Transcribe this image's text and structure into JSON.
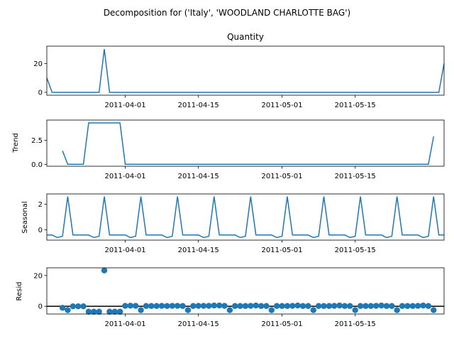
{
  "figure": {
    "title": "Decomposition for ('Italy', 'WOODLAND CHARLOTTE BAG')",
    "x_tick_labels": [
      "2011-04-01",
      "2011-04-15",
      "2011-05-01",
      "2011-05-15"
    ]
  },
  "chart_data": [
    {
      "type": "line",
      "title": "Quantity",
      "ylabel": "",
      "ylim": [
        -2,
        32
      ],
      "yticks": [
        0,
        20
      ],
      "x_start": "2011-03-17",
      "x_end": "2011-06-01",
      "x": [
        "2011-03-17",
        "2011-03-18",
        "2011-03-27",
        "2011-03-28",
        "2011-03-29",
        "2011-06-01"
      ],
      "values": [
        10,
        0,
        0,
        30,
        0,
        20
      ],
      "note_fill": "value is 0 on all other days between these dates",
      "color": "#1f77b4"
    },
    {
      "type": "line",
      "title": "",
      "ylabel": "Trend",
      "ylim": [
        -0.2,
        4.6
      ],
      "yticks": [
        0.0,
        2.5
      ],
      "x": [
        "2011-03-20",
        "2011-03-21",
        "2011-03-24",
        "2011-03-25",
        "2011-03-31",
        "2011-04-01",
        "2011-05-29",
        "2011-05-30"
      ],
      "values": [
        1.4,
        0,
        0,
        4.3,
        4.3,
        0,
        0,
        2.9
      ],
      "color": "#1f77b4"
    },
    {
      "type": "line",
      "title": "",
      "ylabel": "Seasonal",
      "ylim": [
        -0.8,
        2.8
      ],
      "yticks": [
        0,
        2
      ],
      "pattern_start": "2011-03-17",
      "weekly_pattern": [
        -0.4,
        -0.4,
        -0.6,
        -0.5,
        2.6,
        -0.4,
        -0.4
      ],
      "x_end": "2011-06-01",
      "color": "#1f77b4"
    },
    {
      "type": "scatter",
      "title": "",
      "ylabel": "Resid",
      "ylim": [
        -5,
        25
      ],
      "yticks": [
        0,
        20
      ],
      "zero_line": true,
      "x_start": "2011-03-20",
      "values": [
        -1,
        -2.5,
        0,
        0,
        0,
        -3.5,
        -3.5,
        -3.5,
        23.3,
        -3.5,
        -3.5,
        -3.5,
        0.3,
        0.4,
        0.3,
        -2.5,
        0.2,
        0.2,
        0.2,
        0.3,
        0.2,
        0.3,
        0.3,
        0.2,
        -2.5,
        0.2,
        0.3,
        0.3,
        0.3,
        0.5,
        0.5,
        0.3,
        -2.5,
        0.2,
        0.2,
        0.2,
        0.3,
        0.5,
        0.2,
        0.2,
        -2.5,
        0.2,
        0.2,
        0.2,
        0.3,
        0.5,
        0.2,
        0.2,
        -2.5,
        0.2,
        0.2,
        0.2,
        0.3,
        0.5,
        0.2,
        0.2,
        -2.5,
        0.2,
        0.2,
        0.2,
        0.3,
        0.5,
        0.2,
        0.2,
        -2.5,
        0.2,
        0.2,
        0.2,
        0.3,
        0.5,
        0.2,
        -2.5
      ],
      "color": "#1f77b4"
    }
  ]
}
